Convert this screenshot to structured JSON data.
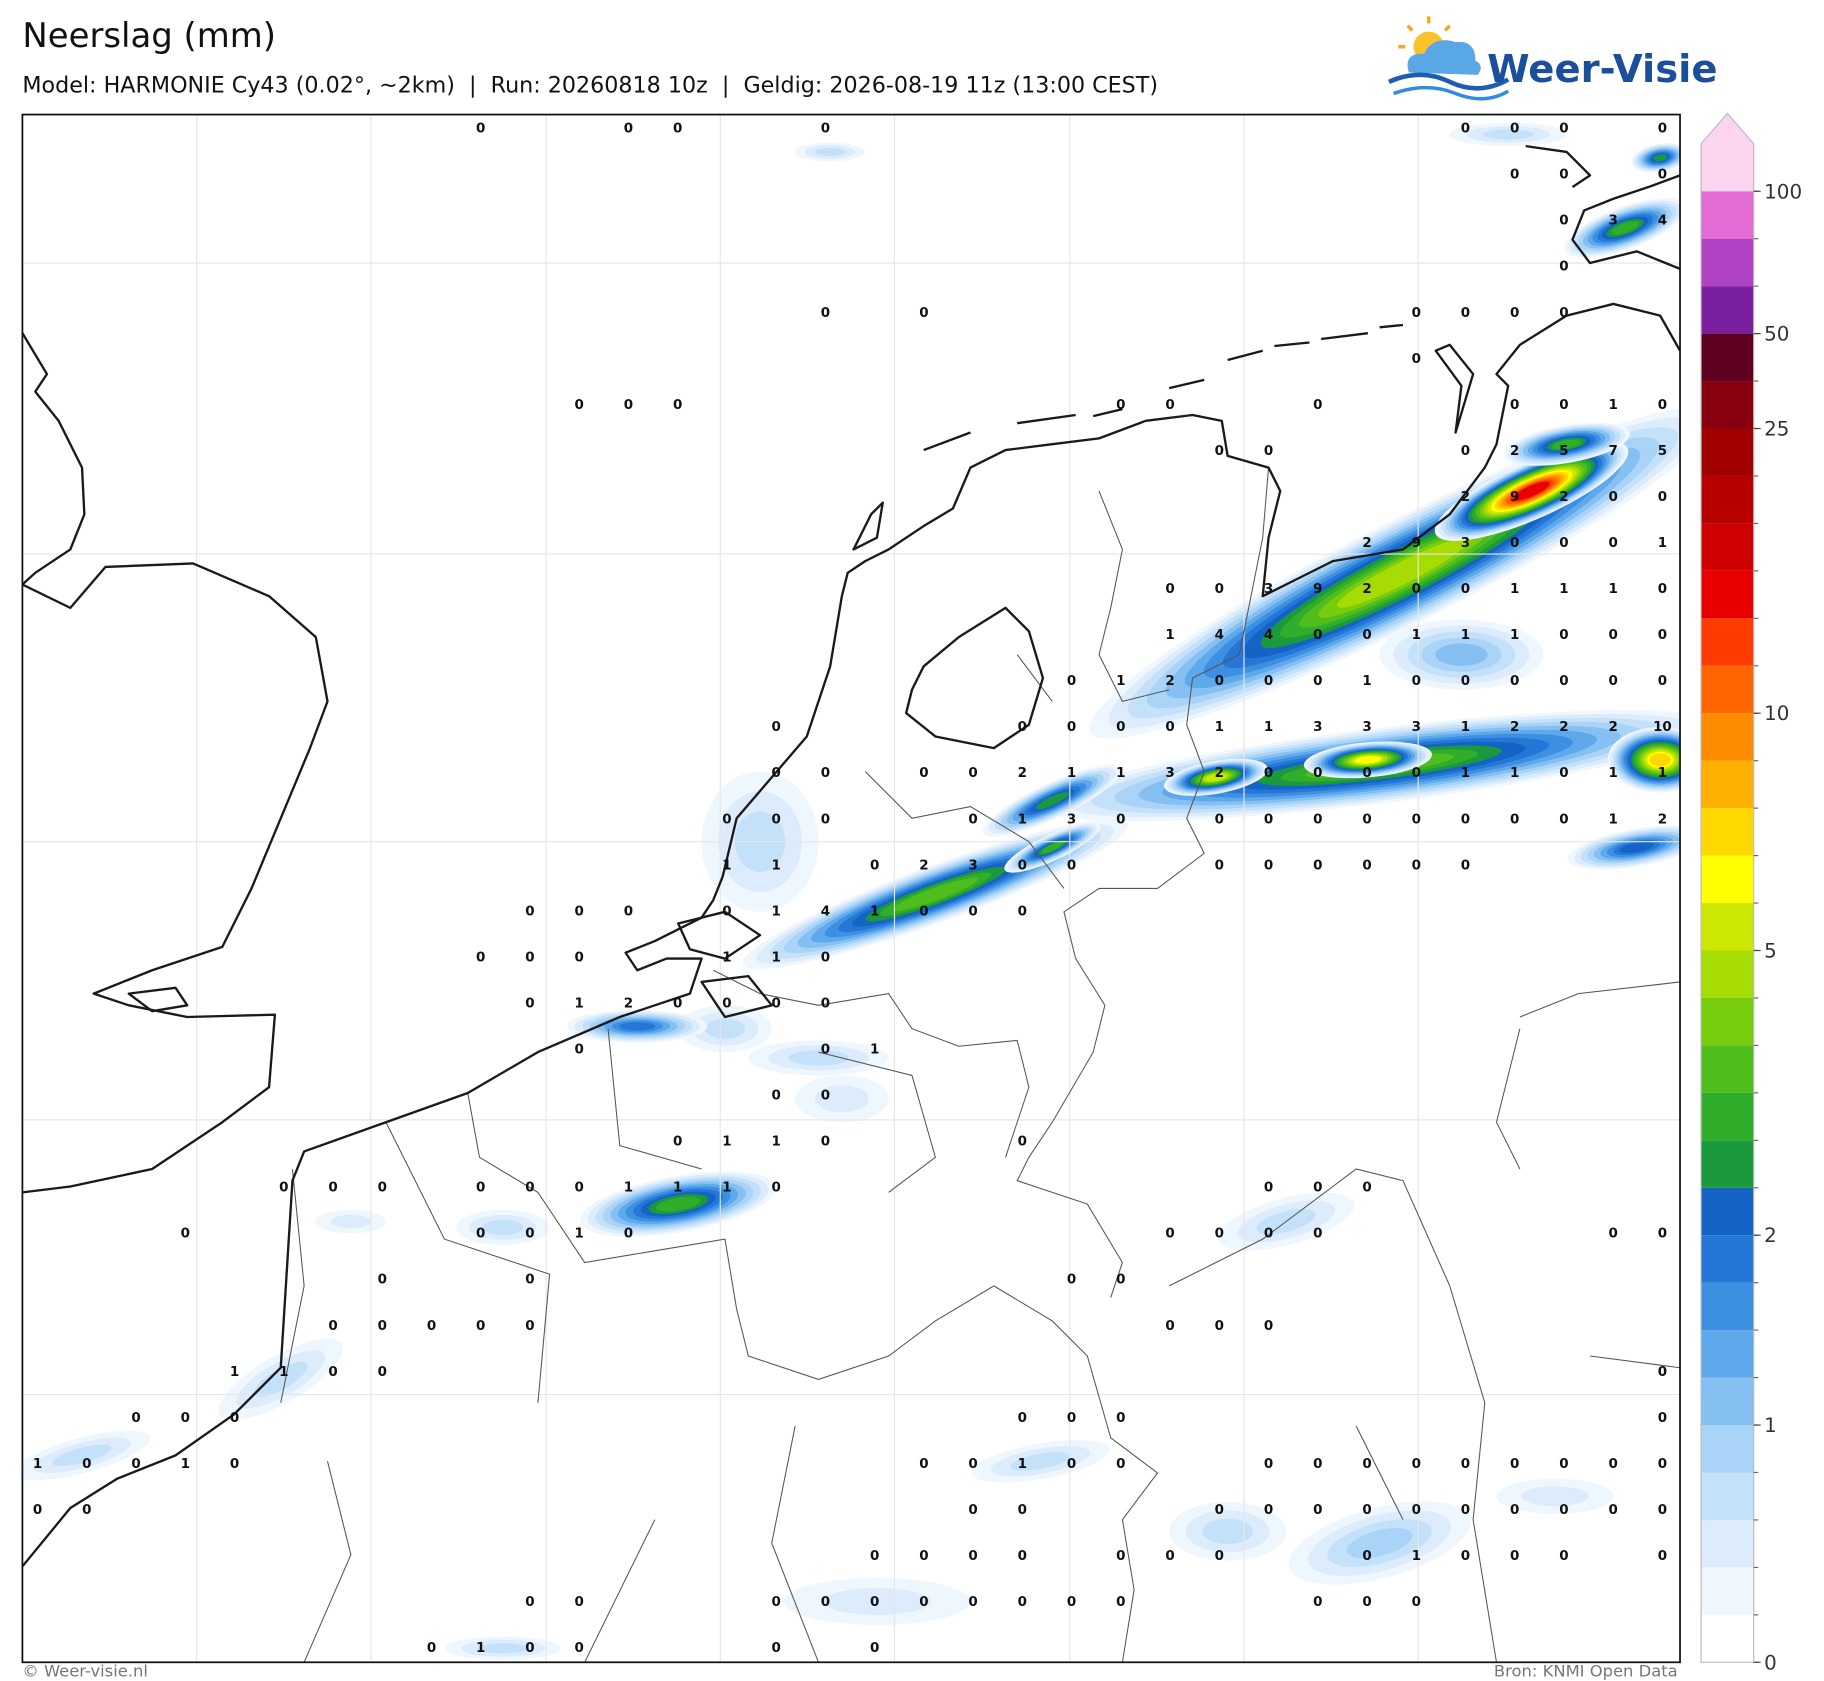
{
  "header": {
    "title": "Neerslag (mm)",
    "subtitle": "Model: HARMONIE Cy43 (0.02°, ~2km)  |  Run: 20260818 10z  |  Geldig: 2026-08-19 11z (13:00 CEST)"
  },
  "logo": {
    "text": "Weer-Visie"
  },
  "map": {
    "station_values": [
      [
        null,
        null,
        null,
        null,
        null,
        null,
        null,
        null,
        null,
        0,
        null,
        null,
        0,
        0,
        null,
        null,
        0,
        null,
        null,
        null,
        null,
        null,
        null,
        null,
        null,
        null,
        null,
        null,
        null,
        0,
        0,
        0,
        null,
        0
      ],
      [
        null,
        null,
        null,
        null,
        null,
        null,
        null,
        null,
        null,
        null,
        null,
        null,
        null,
        null,
        null,
        null,
        null,
        null,
        null,
        null,
        null,
        null,
        null,
        null,
        null,
        null,
        null,
        null,
        null,
        null,
        0,
        0,
        null,
        0
      ],
      [
        null,
        null,
        null,
        null,
        null,
        null,
        null,
        null,
        null,
        null,
        null,
        null,
        null,
        null,
        null,
        null,
        null,
        null,
        null,
        null,
        null,
        null,
        null,
        null,
        null,
        null,
        null,
        null,
        null,
        null,
        null,
        0,
        3,
        4
      ],
      [
        null,
        null,
        null,
        null,
        null,
        null,
        null,
        null,
        null,
        null,
        null,
        null,
        null,
        null,
        null,
        null,
        null,
        null,
        null,
        null,
        null,
        null,
        null,
        null,
        null,
        null,
        null,
        null,
        null,
        null,
        null,
        0,
        null,
        null
      ],
      [
        null,
        null,
        null,
        null,
        null,
        null,
        null,
        null,
        null,
        null,
        null,
        null,
        null,
        null,
        null,
        null,
        0,
        null,
        0,
        null,
        null,
        null,
        null,
        null,
        null,
        null,
        null,
        null,
        0,
        0,
        0,
        0,
        null,
        null
      ],
      [
        null,
        null,
        null,
        null,
        null,
        null,
        null,
        null,
        null,
        null,
        null,
        null,
        null,
        null,
        null,
        null,
        null,
        null,
        null,
        null,
        null,
        null,
        null,
        null,
        null,
        null,
        null,
        null,
        0,
        null,
        null,
        null,
        null,
        null
      ],
      [
        null,
        null,
        null,
        null,
        null,
        null,
        null,
        null,
        null,
        null,
        null,
        0,
        0,
        0,
        null,
        null,
        null,
        null,
        null,
        null,
        null,
        null,
        0,
        0,
        null,
        null,
        0,
        null,
        null,
        null,
        0,
        0,
        1,
        0
      ],
      [
        null,
        null,
        null,
        null,
        null,
        null,
        null,
        null,
        null,
        null,
        null,
        null,
        null,
        null,
        null,
        null,
        null,
        null,
        null,
        null,
        null,
        null,
        null,
        null,
        0,
        0,
        null,
        null,
        null,
        0,
        2,
        5,
        7,
        5
      ],
      [
        null,
        null,
        null,
        null,
        null,
        null,
        null,
        null,
        null,
        null,
        null,
        null,
        null,
        null,
        null,
        null,
        null,
        null,
        null,
        null,
        null,
        null,
        null,
        null,
        null,
        null,
        null,
        null,
        null,
        2,
        9,
        2,
        0,
        0
      ],
      [
        null,
        null,
        null,
        null,
        null,
        null,
        null,
        null,
        null,
        null,
        null,
        null,
        null,
        null,
        null,
        null,
        null,
        null,
        null,
        null,
        null,
        null,
        null,
        null,
        null,
        null,
        null,
        2,
        9,
        3,
        0,
        0,
        0,
        1
      ],
      [
        null,
        null,
        null,
        null,
        null,
        null,
        null,
        null,
        null,
        null,
        null,
        null,
        null,
        null,
        null,
        null,
        null,
        null,
        null,
        null,
        null,
        null,
        null,
        0,
        0,
        3,
        9,
        2,
        0,
        0,
        1,
        1,
        1,
        0
      ],
      [
        null,
        null,
        null,
        null,
        null,
        null,
        null,
        null,
        null,
        null,
        null,
        null,
        null,
        null,
        null,
        null,
        null,
        null,
        null,
        null,
        null,
        null,
        null,
        1,
        4,
        4,
        0,
        0,
        1,
        1,
        1,
        0,
        0,
        0
      ],
      [
        null,
        null,
        null,
        null,
        null,
        null,
        null,
        null,
        null,
        null,
        null,
        null,
        null,
        null,
        null,
        null,
        null,
        null,
        null,
        null,
        null,
        0,
        1,
        2,
        0,
        0,
        0,
        1,
        0,
        0,
        0,
        0,
        0,
        0
      ],
      [
        null,
        null,
        null,
        null,
        null,
        null,
        null,
        null,
        null,
        null,
        null,
        null,
        null,
        null,
        null,
        0,
        null,
        null,
        null,
        null,
        0,
        0,
        0,
        0,
        1,
        1,
        3,
        3,
        3,
        1,
        2,
        2,
        2,
        10
      ],
      [
        null,
        null,
        null,
        null,
        null,
        null,
        null,
        null,
        null,
        null,
        null,
        null,
        null,
        null,
        null,
        0,
        0,
        null,
        0,
        0,
        2,
        1,
        1,
        3,
        2,
        0,
        0,
        0,
        0,
        1,
        1,
        0,
        1,
        1
      ],
      [
        null,
        null,
        null,
        null,
        null,
        null,
        null,
        null,
        null,
        null,
        null,
        null,
        null,
        null,
        0,
        0,
        0,
        null,
        null,
        0,
        1,
        3,
        0,
        null,
        0,
        0,
        0,
        0,
        0,
        0,
        0,
        0,
        1,
        2
      ],
      [
        null,
        null,
        null,
        null,
        null,
        null,
        null,
        null,
        null,
        null,
        null,
        null,
        null,
        null,
        1,
        1,
        null,
        0,
        2,
        3,
        0,
        0,
        null,
        null,
        0,
        0,
        0,
        0,
        0,
        0,
        null,
        null,
        null,
        null
      ],
      [
        null,
        null,
        null,
        null,
        null,
        null,
        null,
        null,
        null,
        null,
        0,
        0,
        0,
        null,
        0,
        1,
        4,
        1,
        0,
        0,
        0,
        null,
        null,
        null,
        null,
        null,
        null,
        null,
        null,
        null,
        null,
        null,
        null,
        null
      ],
      [
        null,
        null,
        null,
        null,
        null,
        null,
        null,
        null,
        null,
        0,
        0,
        0,
        null,
        null,
        1,
        1,
        0,
        null,
        null,
        null,
        null,
        null,
        null,
        null,
        null,
        null,
        null,
        null,
        null,
        null,
        null,
        null,
        null,
        null
      ],
      [
        null,
        null,
        null,
        null,
        null,
        null,
        null,
        null,
        null,
        null,
        0,
        1,
        2,
        0,
        0,
        0,
        0,
        null,
        null,
        null,
        null,
        null,
        null,
        null,
        null,
        null,
        null,
        null,
        null,
        null,
        null,
        null,
        null,
        null
      ],
      [
        null,
        null,
        null,
        null,
        null,
        null,
        null,
        null,
        null,
        null,
        null,
        0,
        null,
        null,
        null,
        null,
        0,
        1,
        null,
        null,
        null,
        null,
        null,
        null,
        null,
        null,
        null,
        null,
        null,
        null,
        null,
        null,
        null,
        null
      ],
      [
        null,
        null,
        null,
        null,
        null,
        null,
        null,
        null,
        null,
        null,
        null,
        null,
        null,
        null,
        null,
        0,
        0,
        null,
        null,
        null,
        null,
        null,
        null,
        null,
        null,
        null,
        null,
        null,
        null,
        null,
        null,
        null,
        null,
        null
      ],
      [
        null,
        null,
        null,
        null,
        null,
        null,
        null,
        null,
        null,
        null,
        null,
        null,
        null,
        0,
        1,
        1,
        0,
        null,
        null,
        null,
        0,
        null,
        null,
        null,
        null,
        null,
        null,
        null,
        null,
        null,
        null,
        null,
        null,
        null
      ],
      [
        null,
        null,
        null,
        null,
        null,
        0,
        0,
        0,
        null,
        0,
        0,
        0,
        1,
        1,
        1,
        0,
        null,
        null,
        null,
        null,
        null,
        null,
        null,
        null,
        null,
        0,
        0,
        0,
        null,
        null,
        null,
        null,
        null,
        null
      ],
      [
        null,
        null,
        null,
        0,
        null,
        null,
        null,
        null,
        null,
        0,
        0,
        1,
        0,
        null,
        null,
        null,
        null,
        null,
        null,
        null,
        null,
        null,
        null,
        0,
        0,
        0,
        0,
        null,
        null,
        null,
        null,
        null,
        0,
        0
      ],
      [
        null,
        null,
        null,
        null,
        null,
        null,
        null,
        0,
        null,
        null,
        0,
        null,
        null,
        null,
        null,
        null,
        null,
        null,
        null,
        null,
        null,
        0,
        0,
        null,
        null,
        null,
        null,
        null,
        null,
        null,
        null,
        null,
        null,
        null
      ],
      [
        null,
        null,
        null,
        null,
        null,
        null,
        0,
        0,
        0,
        0,
        0,
        null,
        null,
        null,
        null,
        null,
        null,
        null,
        null,
        null,
        null,
        null,
        null,
        0,
        0,
        0,
        null,
        null,
        null,
        null,
        null,
        null,
        null,
        null
      ],
      [
        null,
        null,
        null,
        null,
        1,
        1,
        0,
        0,
        null,
        null,
        null,
        null,
        null,
        null,
        null,
        null,
        null,
        null,
        null,
        null,
        null,
        null,
        null,
        null,
        null,
        null,
        null,
        null,
        null,
        null,
        null,
        null,
        null,
        0
      ],
      [
        null,
        null,
        0,
        0,
        0,
        null,
        null,
        null,
        null,
        null,
        null,
        null,
        null,
        null,
        null,
        null,
        null,
        null,
        null,
        null,
        0,
        0,
        0,
        null,
        null,
        null,
        null,
        null,
        null,
        null,
        null,
        null,
        null,
        0
      ],
      [
        1,
        0,
        0,
        1,
        0,
        null,
        null,
        null,
        null,
        null,
        null,
        null,
        null,
        null,
        null,
        null,
        null,
        null,
        0,
        0,
        1,
        0,
        0,
        null,
        null,
        0,
        0,
        0,
        0,
        0,
        0,
        0,
        0,
        0
      ],
      [
        0,
        0,
        null,
        null,
        null,
        null,
        null,
        null,
        null,
        null,
        null,
        null,
        null,
        null,
        null,
        null,
        null,
        null,
        null,
        0,
        0,
        null,
        null,
        null,
        0,
        0,
        0,
        0,
        0,
        0,
        0,
        0,
        0,
        0
      ],
      [
        null,
        null,
        null,
        null,
        null,
        null,
        null,
        null,
        null,
        null,
        null,
        null,
        null,
        null,
        null,
        null,
        null,
        0,
        0,
        0,
        0,
        null,
        0,
        0,
        0,
        null,
        null,
        0,
        1,
        0,
        0,
        0,
        null,
        0
      ],
      [
        null,
        null,
        null,
        null,
        null,
        null,
        null,
        null,
        null,
        null,
        0,
        0,
        null,
        null,
        null,
        0,
        0,
        0,
        0,
        0,
        0,
        0,
        0,
        null,
        null,
        null,
        0,
        0,
        0,
        null,
        null,
        null,
        null,
        null
      ],
      [
        null,
        null,
        null,
        null,
        null,
        null,
        null,
        null,
        0,
        1,
        0,
        0,
        null,
        null,
        null,
        0,
        null,
        0,
        null,
        null,
        null,
        null,
        null,
        null,
        null,
        null,
        null,
        null,
        null,
        null,
        null,
        null,
        null,
        null
      ]
    ]
  },
  "colorbar": {
    "levels": [
      0,
      0.1,
      0.25,
      0.5,
      0.75,
      1,
      1.25,
      1.5,
      1.75,
      2,
      2.5,
      3,
      3.5,
      4,
      4.5,
      5,
      6,
      7,
      8,
      9,
      10,
      12.5,
      15,
      17.5,
      20,
      22.5,
      25,
      35,
      50,
      65,
      80,
      100
    ],
    "colors": [
      "#ffffff",
      "#eef6fe",
      "#dcecfc",
      "#c4e1fa",
      "#a9d3f7",
      "#86c0f2",
      "#5ea8ec",
      "#3d8fe2",
      "#2477d6",
      "#1563c4",
      "#1a9a3c",
      "#30ad2a",
      "#4fbd1c",
      "#78cc0e",
      "#a6dc04",
      "#cde800",
      "#ffff00",
      "#ffd800",
      "#ffb000",
      "#ff8c00",
      "#ff6600",
      "#ff3c00",
      "#e80000",
      "#d00000",
      "#b80000",
      "#a00000",
      "#880010",
      "#600020",
      "#7a1fa0",
      "#b042c4",
      "#e46ad4"
    ],
    "over_color": "#fbd4f0",
    "ticks": [
      0,
      1,
      2,
      5,
      10,
      25,
      50,
      100
    ]
  },
  "footer": {
    "copyright": "© Weer-visie.nl",
    "source": "Bron: KNMI Open Data"
  }
}
